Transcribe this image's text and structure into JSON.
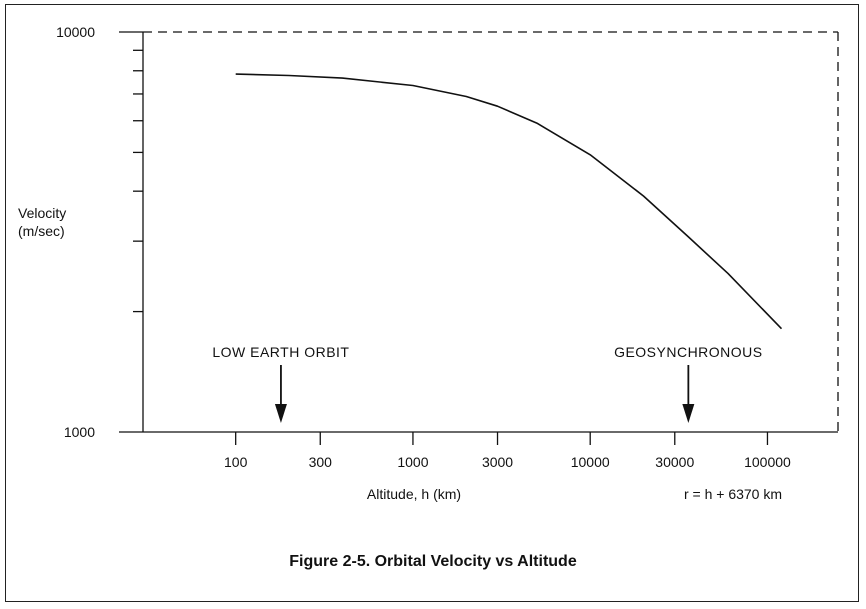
{
  "caption": "Figure 2-5.  Orbital Velocity vs Altitude",
  "chart_data": {
    "type": "line",
    "title": "Figure 2-5.  Orbital Velocity vs Altitude",
    "ylabel_line1": "Velocity",
    "ylabel_line2": "(m/sec)",
    "xlabel": "Altitude, h (km)",
    "note": "r = h + 6370 km",
    "x_scale": "log",
    "y_scale": "log",
    "xlim": [
      30,
      250000
    ],
    "ylim": [
      1000,
      10000
    ],
    "x_ticks": [
      100,
      300,
      1000,
      3000,
      10000,
      30000,
      100000
    ],
    "x_tick_labels": [
      "100",
      "300",
      "1000",
      "3000",
      "10000",
      "30000",
      "100000"
    ],
    "y_tick_labels": [
      "10000",
      "1000"
    ],
    "y_minor_ticks": [
      9000,
      8000,
      7000,
      6000,
      5000,
      4000,
      3000,
      2000
    ],
    "grid": false,
    "series": [
      {
        "x": [
          100,
          200,
          400,
          1000,
          2000,
          3000,
          5000,
          10000,
          20000,
          35786,
          60000,
          120000
        ],
        "y": [
          7848,
          7784,
          7669,
          7350,
          6898,
          6525,
          5919,
          4933,
          3888,
          3075,
          2489,
          1812
        ]
      }
    ],
    "annotations": [
      {
        "text": "LOW EARTH ORBIT",
        "x": 180
      },
      {
        "text": "GEOSYNCHRONOUS",
        "x": 35786
      }
    ]
  }
}
